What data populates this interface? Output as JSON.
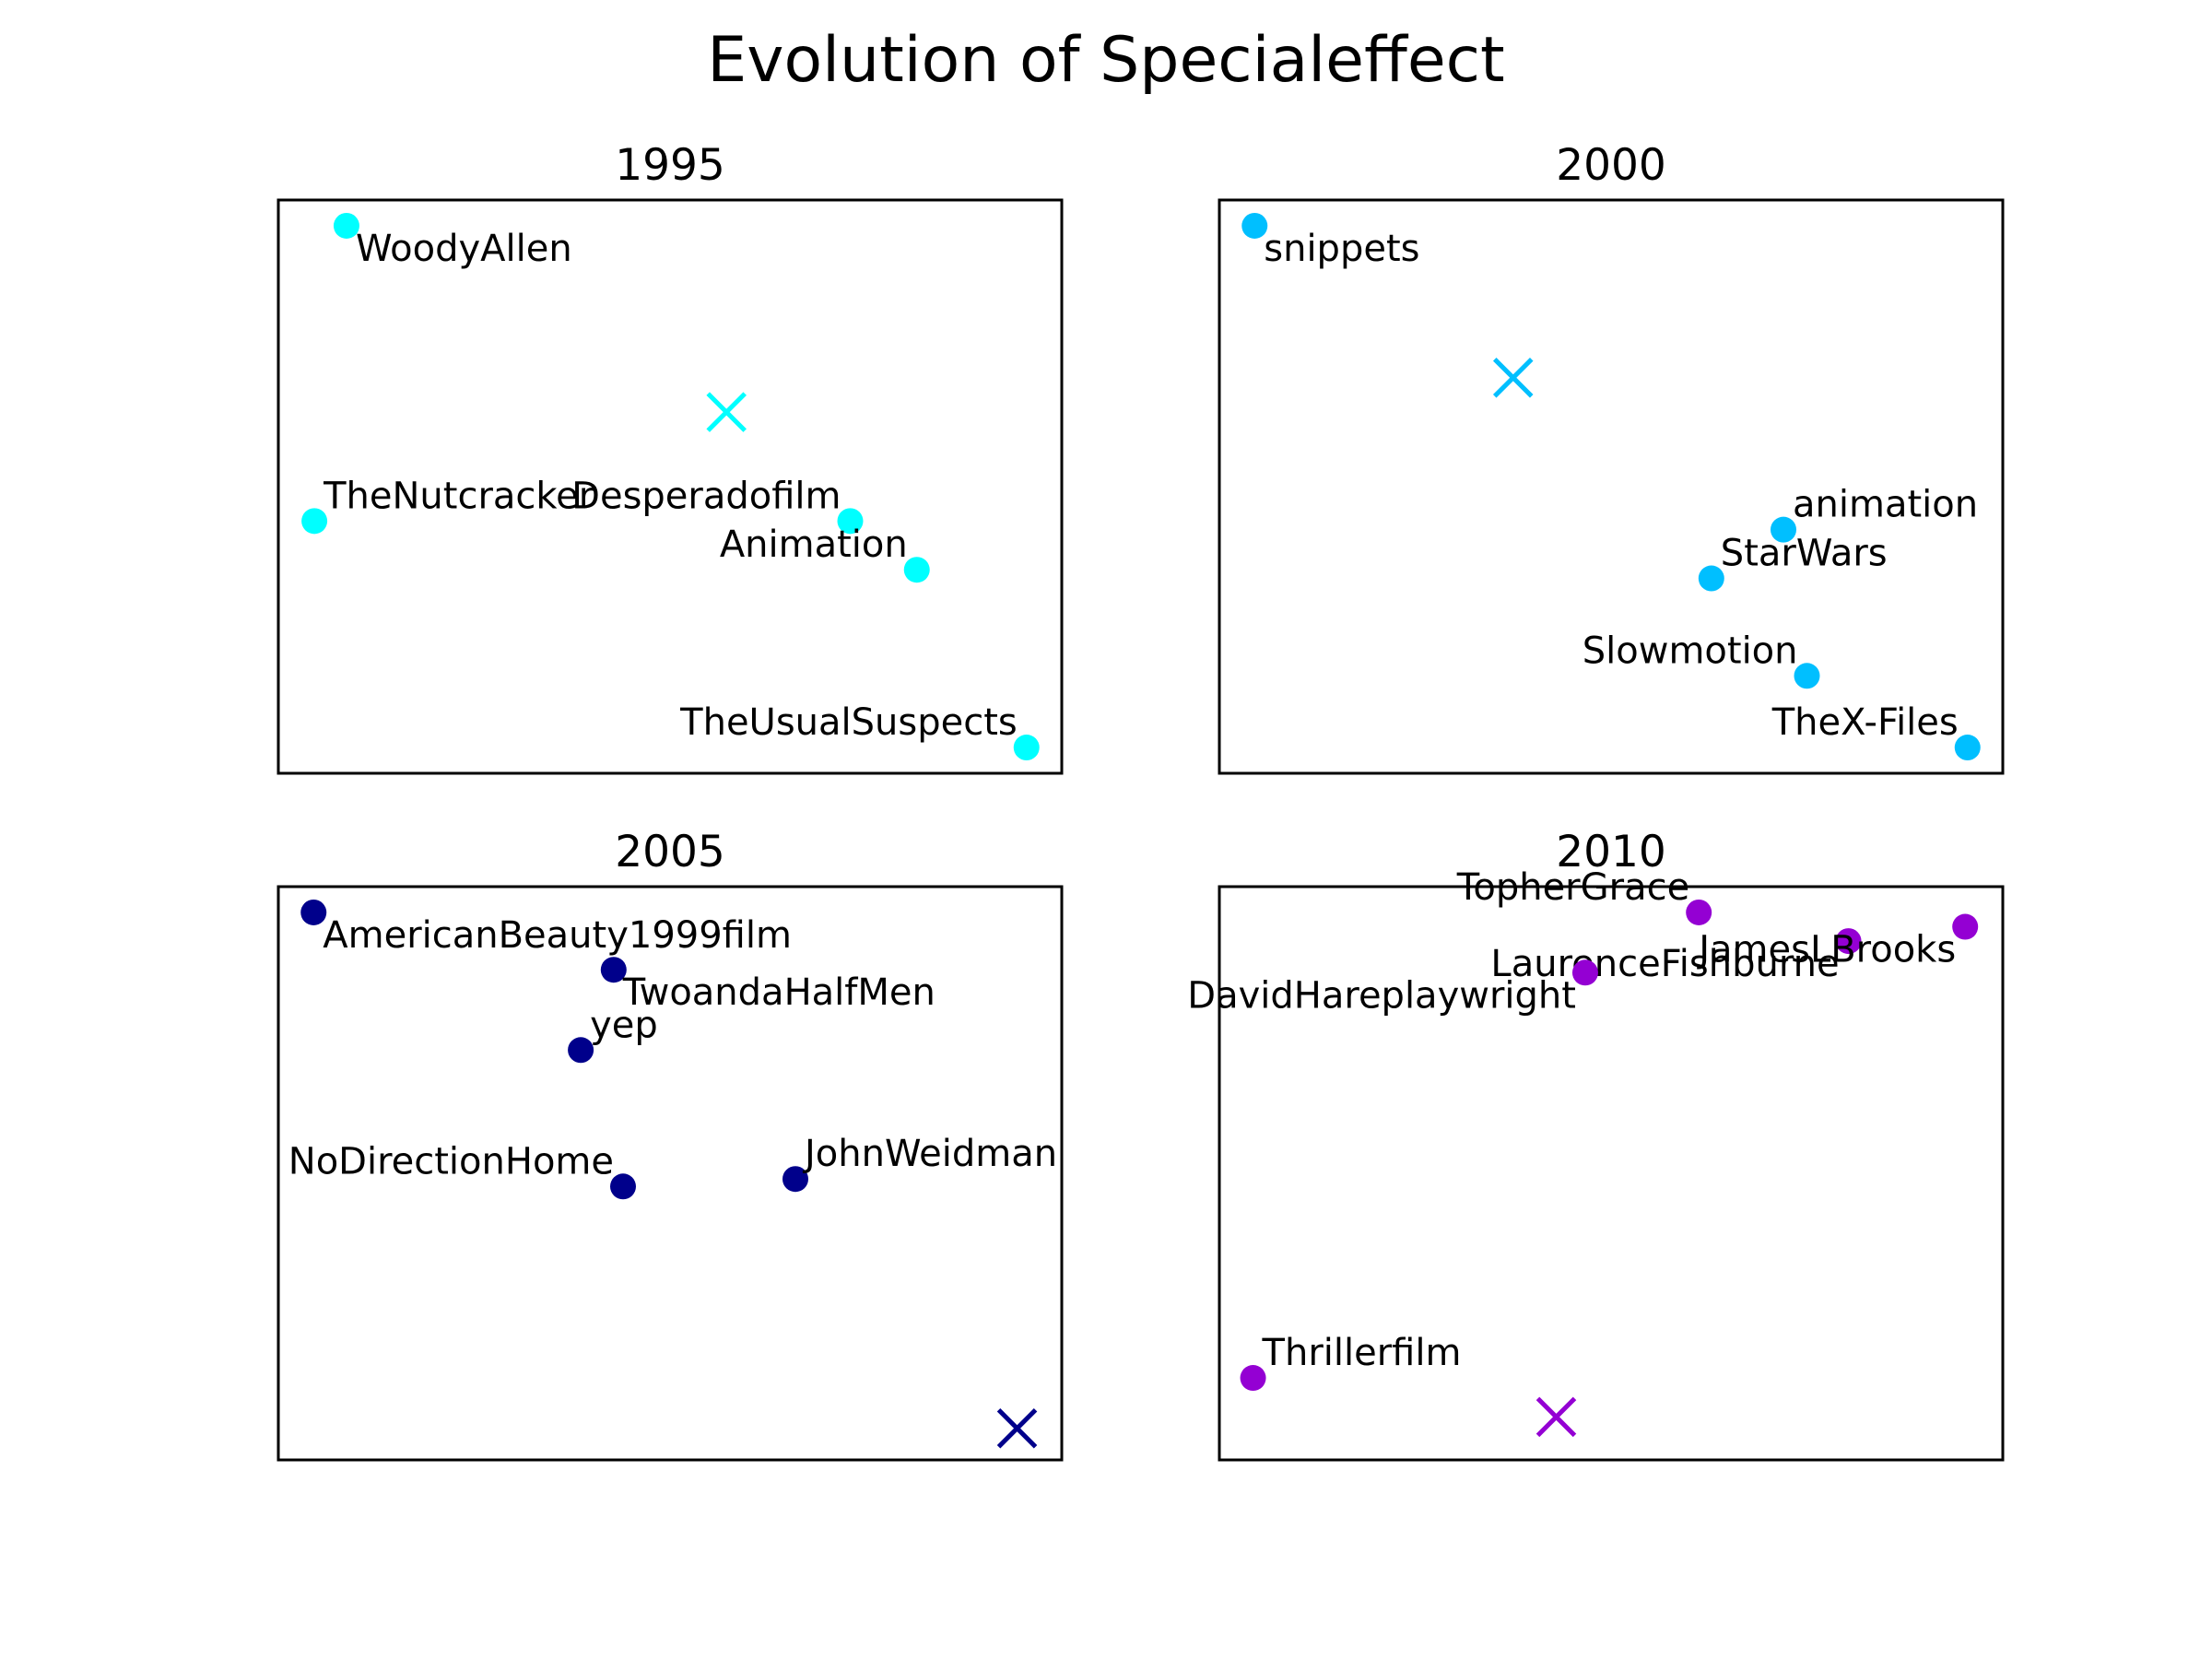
{
  "title": "Evolution of Specialeffect",
  "chart_data": [
    {
      "type": "scatter",
      "title": "1995",
      "color": "#00ffff",
      "xlim": [
        0,
        10
      ],
      "ylim": [
        0,
        10
      ],
      "ticks": "none",
      "points": [
        {
          "label": "WoodyAllen",
          "x": 0.87,
          "y": 9.55,
          "label_pos": "below-right"
        },
        {
          "label": "TheNutcracker",
          "x": 0.46,
          "y": 4.4,
          "label_pos": "above-right"
        },
        {
          "label": "Desperadofilm",
          "x": 7.3,
          "y": 4.4,
          "label_pos": "above-left"
        },
        {
          "label": "Animation",
          "x": 8.15,
          "y": 3.55,
          "label_pos": "above-left"
        },
        {
          "label": "TheUsualSuspects",
          "x": 9.55,
          "y": 0.45,
          "label_pos": "above-left"
        }
      ],
      "centroid": {
        "x": 5.72,
        "y": 6.3
      }
    },
    {
      "type": "scatter",
      "title": "2000",
      "color": "#00bfff",
      "xlim": [
        0,
        10
      ],
      "ylim": [
        0,
        10
      ],
      "ticks": "none",
      "points": [
        {
          "label": "snippets",
          "x": 0.45,
          "y": 9.55,
          "label_pos": "below-right"
        },
        {
          "label": "animation",
          "x": 7.2,
          "y": 4.25,
          "label_pos": "above-right"
        },
        {
          "label": "StarWars",
          "x": 6.28,
          "y": 3.4,
          "label_pos": "above-right"
        },
        {
          "label": "Slowmotion",
          "x": 7.5,
          "y": 1.7,
          "label_pos": "above-left"
        },
        {
          "label": "TheX-Files",
          "x": 9.55,
          "y": 0.45,
          "label_pos": "above-left"
        }
      ],
      "centroid": {
        "x": 3.75,
        "y": 6.9
      }
    },
    {
      "type": "scatter",
      "title": "2005",
      "color": "#00008b",
      "xlim": [
        0,
        10
      ],
      "ylim": [
        0,
        10
      ],
      "ticks": "none",
      "points": [
        {
          "label": "AmericanBeauty1999film",
          "x": 0.45,
          "y": 9.55,
          "label_pos": "below-right"
        },
        {
          "label": "TwoandaHalfMen",
          "x": 4.28,
          "y": 8.55,
          "label_pos": "below-right"
        },
        {
          "label": "yep",
          "x": 3.86,
          "y": 7.15,
          "label_pos": "above-right"
        },
        {
          "label": "NoDirectionHome",
          "x": 4.4,
          "y": 4.77,
          "label_pos": "above-left"
        },
        {
          "label": "JohnWeidman",
          "x": 6.6,
          "y": 4.9,
          "label_pos": "above-right"
        }
      ],
      "centroid": {
        "x": 9.43,
        "y": 0.55
      }
    },
    {
      "type": "scatter",
      "title": "2010",
      "color": "#9400d3",
      "xlim": [
        0,
        10
      ],
      "ylim": [
        0,
        10
      ],
      "ticks": "none",
      "points": [
        {
          "label": "TopherGrace",
          "x": 6.12,
          "y": 9.55,
          "label_pos": "above-left"
        },
        {
          "label": "LaurenceFishburne",
          "x": 8.03,
          "y": 9.05,
          "label_pos": "below-left"
        },
        {
          "label": "JamesLBrooks",
          "x": 9.52,
          "y": 9.3,
          "label_pos": "below-left"
        },
        {
          "label": "DavidHareplaywright",
          "x": 4.67,
          "y": 8.5,
          "label_pos": "below-left"
        },
        {
          "label": "Thrillerfilm",
          "x": 0.43,
          "y": 1.43,
          "label_pos": "above-right"
        }
      ],
      "centroid": {
        "x": 4.3,
        "y": 0.75
      }
    }
  ]
}
